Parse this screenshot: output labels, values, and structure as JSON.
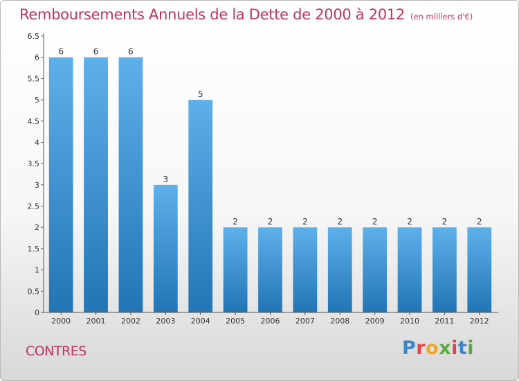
{
  "header": {
    "title": "Remboursements Annuels de la Dette de 2000 à 2012",
    "unit": "(en milliers d'€)"
  },
  "footer": {
    "city": "CONTRES",
    "logo": [
      "P",
      "r",
      "o",
      "x",
      "i",
      "t",
      "i"
    ]
  },
  "chart_data": {
    "type": "bar",
    "title": "Remboursements Annuels de la Dette de 2000 à 2012",
    "subtitle": "(en milliers d'€)",
    "categories": [
      "2000",
      "2001",
      "2002",
      "2003",
      "2004",
      "2005",
      "2006",
      "2007",
      "2008",
      "2009",
      "2010",
      "2011",
      "2012"
    ],
    "values": [
      6,
      6,
      6,
      3,
      5,
      2,
      2,
      2,
      2,
      2,
      2,
      2,
      2
    ],
    "data_labels": [
      "6",
      "6",
      "6",
      "3",
      "5",
      "2",
      "2",
      "2",
      "2",
      "2",
      "2",
      "2",
      "2"
    ],
    "yticks": [
      "0",
      "0.5",
      "1",
      "1.5",
      "2",
      "2.5",
      "3",
      "3.5",
      "4",
      "4.5",
      "5",
      "5.5",
      "6",
      "6.5"
    ],
    "ylim": [
      0,
      6.5
    ],
    "grid": false,
    "bar_color_top": "#5eb0ea",
    "bar_color_bottom": "#2275b5"
  }
}
